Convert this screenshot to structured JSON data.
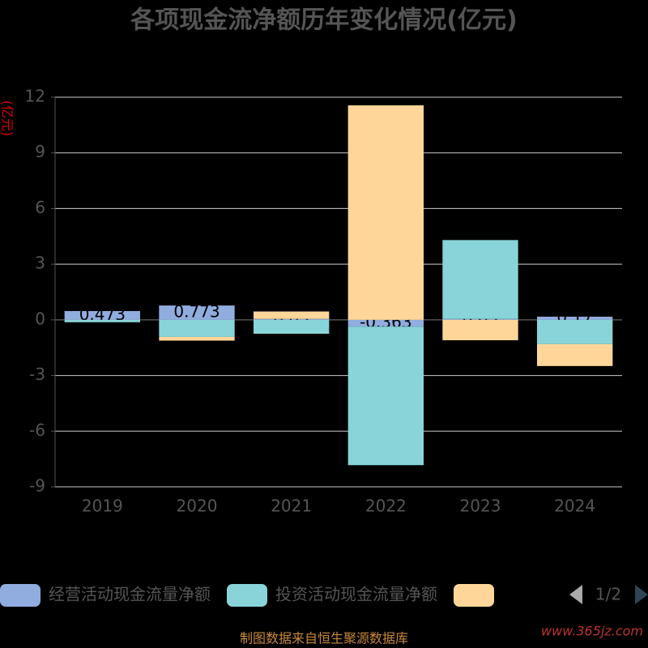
{
  "chart_data": {
    "type": "bar",
    "stacked": true,
    "title": "各项现金流净额历年变化情况(亿元)",
    "y_label": "(亿元)",
    "categories": [
      "2019",
      "2020",
      "2021",
      "2022",
      "2023",
      "2024"
    ],
    "series": [
      {
        "name": "经营活动现金流量净额",
        "color": "#91acde",
        "values": [
          0.473,
          0.773,
          0.05,
          -0.363,
          0.05,
          0.17
        ]
      },
      {
        "name": "投资活动现金流量净额",
        "color": "#88d4d8",
        "values": [
          -0.13,
          -0.92,
          -0.75,
          -7.47,
          4.25,
          -1.31
        ]
      },
      {
        "color": "#ffd699",
        "values": [
          0,
          -0.2,
          0.4,
          11.56,
          -1.1,
          -1.18
        ]
      }
    ],
    "ylim": [
      -9,
      12
    ],
    "yticks": [
      -9,
      -6,
      -3,
      0,
      3,
      6,
      9,
      12
    ],
    "grid": true,
    "legend_page": "1/2",
    "source": "制图数据来自恒生聚源数据库",
    "watermark": "www.365jz.com"
  }
}
